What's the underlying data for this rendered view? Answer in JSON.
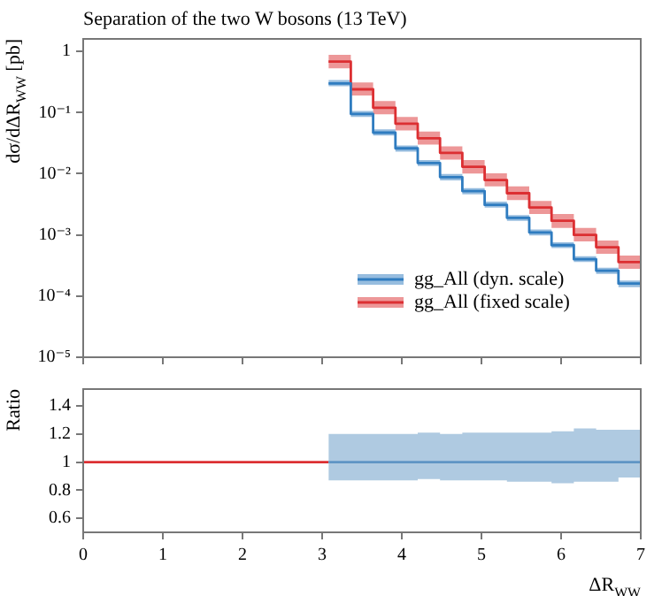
{
  "chart_data": [
    {
      "type": "step",
      "title": "Separation of the two W bosons (13 TeV)",
      "ylabel": "dσ/dΔR$_{WW}$ [pb]",
      "log": "y",
      "legend": "bottom right",
      "tick_labels": "y",
      "grid": false,
      "x": [
        3.08,
        3.36,
        3.64,
        3.92,
        4.2,
        4.48,
        4.76,
        5.04,
        5.32,
        5.6,
        5.88,
        6.16,
        6.44,
        6.72,
        7
      ],
      "xlim": [
        0,
        7
      ],
      "xticks": [
        0,
        1,
        2,
        3,
        4,
        5,
        6,
        7
      ],
      "ylim": [
        1e-05,
        1.6
      ],
      "yticks": [
        {
          "value": 1e-05,
          "label": "10⁻⁵"
        },
        {
          "value": 0.0001,
          "label": "10⁻⁴"
        },
        {
          "value": 0.001,
          "label": "10⁻³"
        },
        {
          "value": 0.01,
          "label": "10⁻²"
        },
        {
          "value": 0.1,
          "label": "10⁻¹"
        },
        1
      ],
      "series": [
        {
          "name": "gg_All (dyn. scale)",
          "color": "#2f7cc0",
          "values": [
            0.3,
            0.095,
            0.047,
            0.026,
            0.015,
            0.0088,
            0.0052,
            0.0031,
            0.0019,
            0.0011,
            0.00068,
            0.0004,
            0.00026,
            0.00016,
            0.00016
          ],
          "upper": [
            0.34,
            0.106,
            0.053,
            0.029,
            0.0168,
            0.0099,
            0.0058,
            0.0035,
            0.0021,
            0.00123,
            0.00076,
            0.00045,
            0.00029,
            0.00018,
            0.00018
          ],
          "lower": [
            0.27,
            0.085,
            0.042,
            0.023,
            0.0134,
            0.0078,
            0.0046,
            0.0028,
            0.0017,
            0.00098,
            0.00061,
            0.00036,
            0.00023,
            0.00014,
            0.00014
          ]
        },
        {
          "name": "gg_All (fixed scale)",
          "color": "#dc2f32",
          "values": [
            0.68,
            0.24,
            0.12,
            0.066,
            0.038,
            0.022,
            0.013,
            0.0079,
            0.0048,
            0.0028,
            0.0017,
            0.001,
            0.00063,
            0.00036,
            0.00036
          ],
          "upper": [
            0.88,
            0.31,
            0.155,
            0.085,
            0.049,
            0.028,
            0.0168,
            0.0102,
            0.0062,
            0.0036,
            0.0022,
            0.0013,
            0.00081,
            0.00046,
            0.00046
          ],
          "lower": [
            0.53,
            0.19,
            0.094,
            0.051,
            0.03,
            0.017,
            0.0101,
            0.0062,
            0.0037,
            0.0022,
            0.0013,
            0.00078,
            0.00049,
            0.00028,
            0.00028
          ]
        }
      ]
    },
    {
      "type": "step",
      "xlabel": "ΔR$_{WW}$",
      "ylabel": "Ratio",
      "grid": false,
      "x": [
        3.08,
        3.36,
        3.64,
        3.92,
        4.2,
        4.48,
        4.76,
        5.04,
        5.32,
        5.6,
        5.88,
        6.16,
        6.44,
        6.72,
        7
      ],
      "xlim": [
        0,
        7
      ],
      "xticks": [
        0,
        1,
        2,
        3,
        4,
        5,
        6,
        7
      ],
      "ylim": [
        0.5,
        1.52
      ],
      "yticks": [
        0.6,
        0.8,
        1,
        1.2,
        1.4
      ],
      "series": [
        {
          "color": "#5f95c4",
          "values": [
            1,
            1,
            1,
            1,
            1,
            1,
            1,
            1,
            1,
            1,
            1,
            1,
            1,
            1,
            1
          ],
          "upper": [
            1.2,
            1.2,
            1.2,
            1.2,
            1.21,
            1.2,
            1.21,
            1.21,
            1.21,
            1.21,
            1.22,
            1.24,
            1.23,
            1.23,
            1.23
          ],
          "lower": [
            0.87,
            0.87,
            0.87,
            0.87,
            0.88,
            0.87,
            0.87,
            0.87,
            0.86,
            0.86,
            0.85,
            0.86,
            0.86,
            0.89,
            0.89
          ]
        },
        {
          "type": "line",
          "color": "#dc2f32",
          "x": [
            0,
            3.08
          ],
          "values": [
            1,
            1
          ]
        }
      ]
    }
  ]
}
